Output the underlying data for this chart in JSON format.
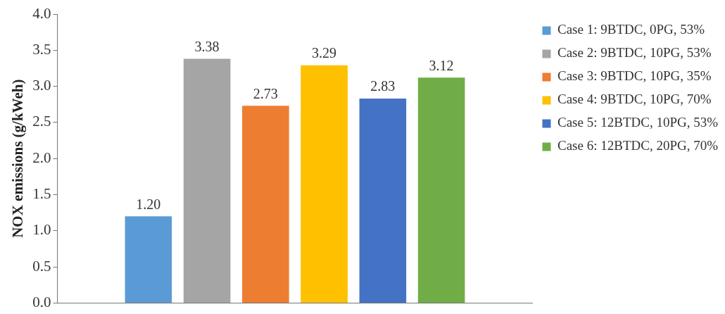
{
  "chart_data": {
    "type": "bar",
    "ylabel": "NOX emissions (g/kWeh)",
    "categories": [
      null
    ],
    "series": [
      {
        "name": "Case 1: 9BTDC, 0PG, 53%",
        "color": "#5b9bd5",
        "values": [
          1.2
        ],
        "value_labels": [
          "1.20"
        ]
      },
      {
        "name": "Case 2: 9BTDC, 10PG, 53%",
        "color": "#a5a5a5",
        "values": [
          3.38
        ],
        "value_labels": [
          "3.38"
        ]
      },
      {
        "name": "Case 3: 9BTDC, 10PG, 35%",
        "color": "#ed7d31",
        "values": [
          2.73
        ],
        "value_labels": [
          "2.73"
        ]
      },
      {
        "name": "Case 4: 9BTDC, 10PG, 70%",
        "color": "#ffc000",
        "values": [
          3.29
        ],
        "value_labels": [
          "3.29"
        ]
      },
      {
        "name": "Case 5: 12BTDC, 10PG, 53%",
        "color": "#4472c4",
        "values": [
          2.83
        ],
        "value_labels": [
          "2.83"
        ]
      },
      {
        "name": "Case 6: 12BTDC, 20PG, 70%",
        "color": "#70ad47",
        "values": [
          3.12
        ],
        "value_labels": [
          "3.12"
        ]
      }
    ],
    "ylim": [
      0,
      4
    ],
    "yticks": [
      {
        "value": 0,
        "label": "0.0"
      },
      {
        "value": 0.5,
        "label": "0.5"
      },
      {
        "value": 1,
        "label": "1.0"
      },
      {
        "value": 1.5,
        "label": "1.5"
      },
      {
        "value": 2,
        "label": "2.0"
      },
      {
        "value": 2.5,
        "label": "2.5"
      },
      {
        "value": 3,
        "label": "3.0"
      },
      {
        "value": 3.5,
        "label": "3.5"
      },
      {
        "value": 4,
        "label": "4.0"
      }
    ],
    "grid": false,
    "legend": "right",
    "tick_labels": "y"
  }
}
